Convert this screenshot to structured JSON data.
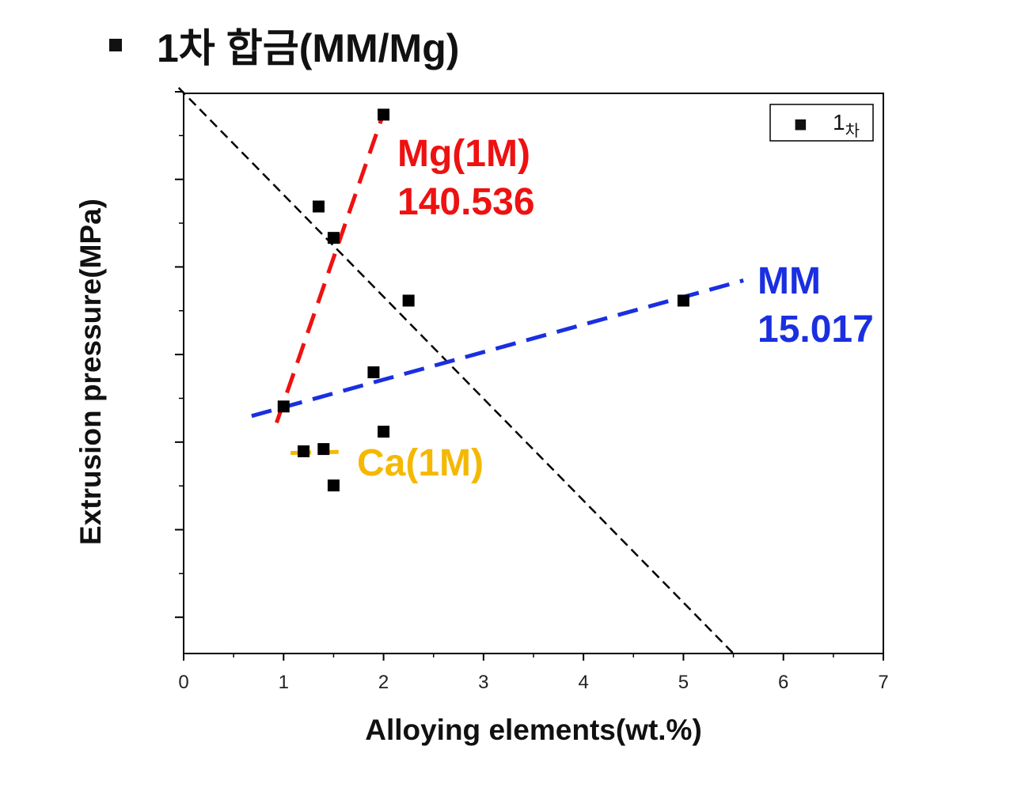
{
  "slide": {
    "bullet": "▪",
    "title": "1차 합금(MM/Mg)"
  },
  "chart_data": {
    "type": "scatter",
    "title": "1차 합금(MM/Mg)",
    "xlabel": "Alloying elements(wt.%)",
    "ylabel": "Extrusion pressure(MPa)",
    "xlim": [
      0,
      7
    ],
    "ylim": [
      0,
      1
    ],
    "y_tick_labels_shown": false,
    "x_ticks": [
      "0",
      "1",
      "2",
      "3",
      "4",
      "5",
      "6",
      "7"
    ],
    "legend": {
      "position": "top-right",
      "marker": "■",
      "label": "1",
      "label_sub": "차"
    },
    "series": [
      {
        "name": "1차",
        "marker": "square",
        "color": "#000000",
        "points": [
          {
            "x": 2.0,
            "y": 0.962
          },
          {
            "x": 1.35,
            "y": 0.798
          },
          {
            "x": 1.5,
            "y": 0.742
          },
          {
            "x": 2.25,
            "y": 0.63
          },
          {
            "x": 5.0,
            "y": 0.63
          },
          {
            "x": 1.9,
            "y": 0.502
          },
          {
            "x": 1.0,
            "y": 0.441
          },
          {
            "x": 2.0,
            "y": 0.396
          },
          {
            "x": 1.2,
            "y": 0.361
          },
          {
            "x": 1.4,
            "y": 0.365
          },
          {
            "x": 1.5,
            "y": 0.3
          }
        ]
      }
    ],
    "trend_lines": [
      {
        "name": "overall",
        "color": "#000000",
        "style": "dashed-thin",
        "x": [
          -0.05,
          5.5
        ],
        "y": [
          1.01,
          0.0
        ]
      },
      {
        "name": "Mg(1M)",
        "color": "#ee1111",
        "style": "dashed-bold",
        "x": [
          0.93,
          2.0
        ],
        "y": [
          0.412,
          0.965
        ]
      },
      {
        "name": "MM",
        "color": "#1a2fe0",
        "style": "dashed-bold",
        "x": [
          0.68,
          5.6
        ],
        "y": [
          0.424,
          0.666
        ]
      },
      {
        "name": "Ca(1M)",
        "color": "#f5b800",
        "style": "dashed-bold",
        "x": [
          1.07,
          1.55
        ],
        "y": [
          0.358,
          0.36
        ]
      }
    ],
    "annotations": [
      {
        "id": "mg",
        "lines": [
          "Mg(1M)",
          "140.536"
        ],
        "color": "#ee1111"
      },
      {
        "id": "mm",
        "lines": [
          "MM",
          "15.017"
        ],
        "color": "#1a2fe0"
      },
      {
        "id": "ca",
        "lines": [
          "Ca(1M)"
        ],
        "color": "#f5b800"
      }
    ]
  }
}
